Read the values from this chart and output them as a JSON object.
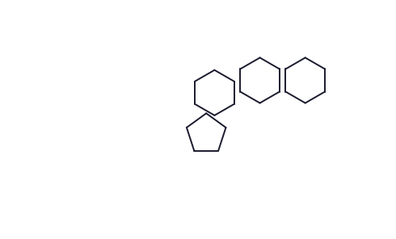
{
  "bg_color": "#ffffff",
  "line_color": "#1a1a2e",
  "line_width": 1.4,
  "figsize": [
    4.9,
    2.96
  ],
  "dpi": 100
}
